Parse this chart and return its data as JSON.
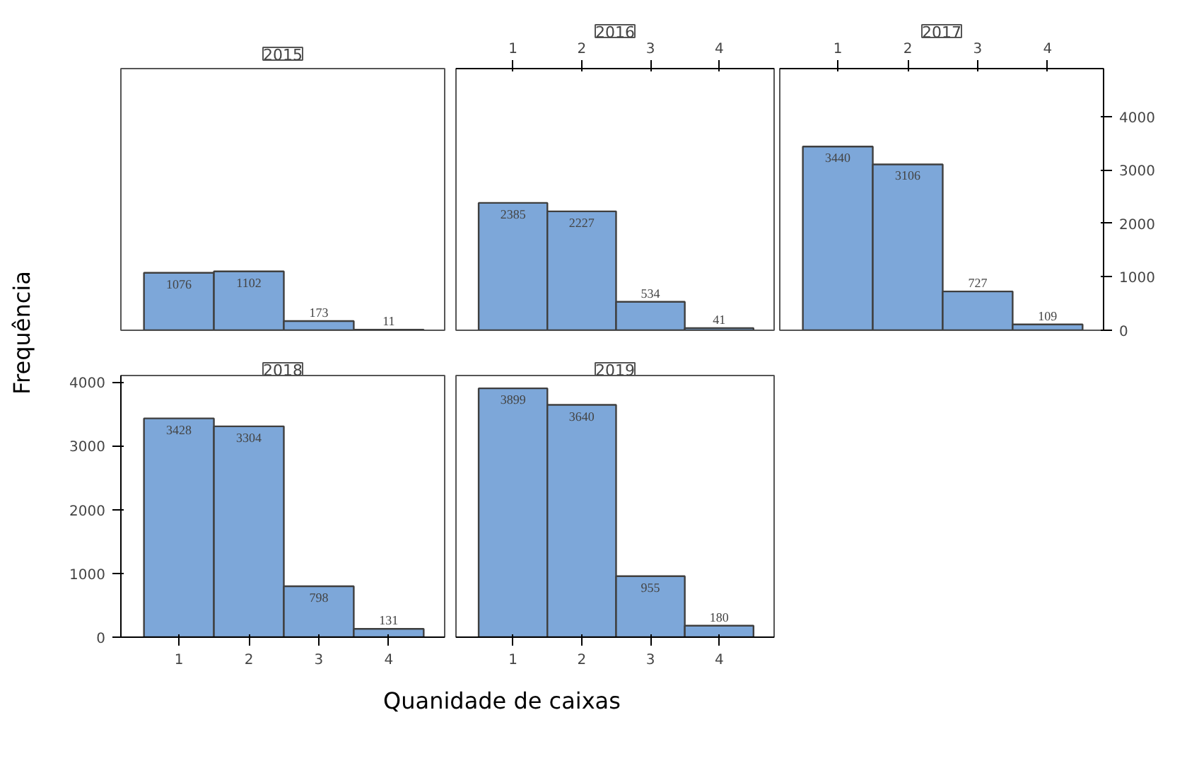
{
  "chart_data": [
    {
      "type": "bar",
      "title": "2015",
      "categories": [
        "1",
        "2",
        "3",
        "4"
      ],
      "values": [
        1076,
        1102,
        173,
        11
      ],
      "color": "#7da7d9",
      "ylim": [
        0,
        4900
      ],
      "yticks": [
        0,
        1000,
        2000,
        3000,
        4000
      ],
      "data_labels": true,
      "tick_labels": false
    },
    {
      "type": "bar",
      "title": "2016",
      "categories": [
        "1",
        "2",
        "3",
        "4"
      ],
      "values": [
        2385,
        2227,
        534,
        41
      ],
      "color": "#7da7d9",
      "ylim": [
        0,
        4900
      ],
      "yticks": [
        0,
        1000,
        2000,
        3000,
        4000
      ],
      "data_labels": true,
      "tick_labels": "x"
    },
    {
      "type": "bar",
      "title": "2017",
      "categories": [
        "1",
        "2",
        "3",
        "4"
      ],
      "values": [
        3440,
        3106,
        727,
        109
      ],
      "color": "#7da7d9",
      "ylim": [
        0,
        4900
      ],
      "yticks": [
        0,
        1000,
        2000,
        3000,
        4000
      ],
      "data_labels": true
    },
    {
      "type": "bar",
      "title": "2018",
      "categories": [
        "1",
        "2",
        "3",
        "4"
      ],
      "values": [
        3428,
        3304,
        798,
        131
      ],
      "color": "#7da7d9",
      "ylim": [
        0,
        4100
      ],
      "yticks": [
        0,
        1000,
        2000,
        3000,
        4000
      ],
      "data_labels": true,
      "xlabel": "Quanidade de caixas",
      "ylabel": "Frequência"
    },
    {
      "type": "bar",
      "title": "2019",
      "categories": [
        "1",
        "2",
        "3",
        "4"
      ],
      "values": [
        3899,
        3640,
        955,
        180
      ],
      "color": "#7da7d9",
      "ylim": [
        0,
        4100
      ],
      "yticks": [
        0,
        1000,
        2000,
        3000,
        4000
      ],
      "data_labels": true,
      "tick_labels": "x"
    }
  ]
}
